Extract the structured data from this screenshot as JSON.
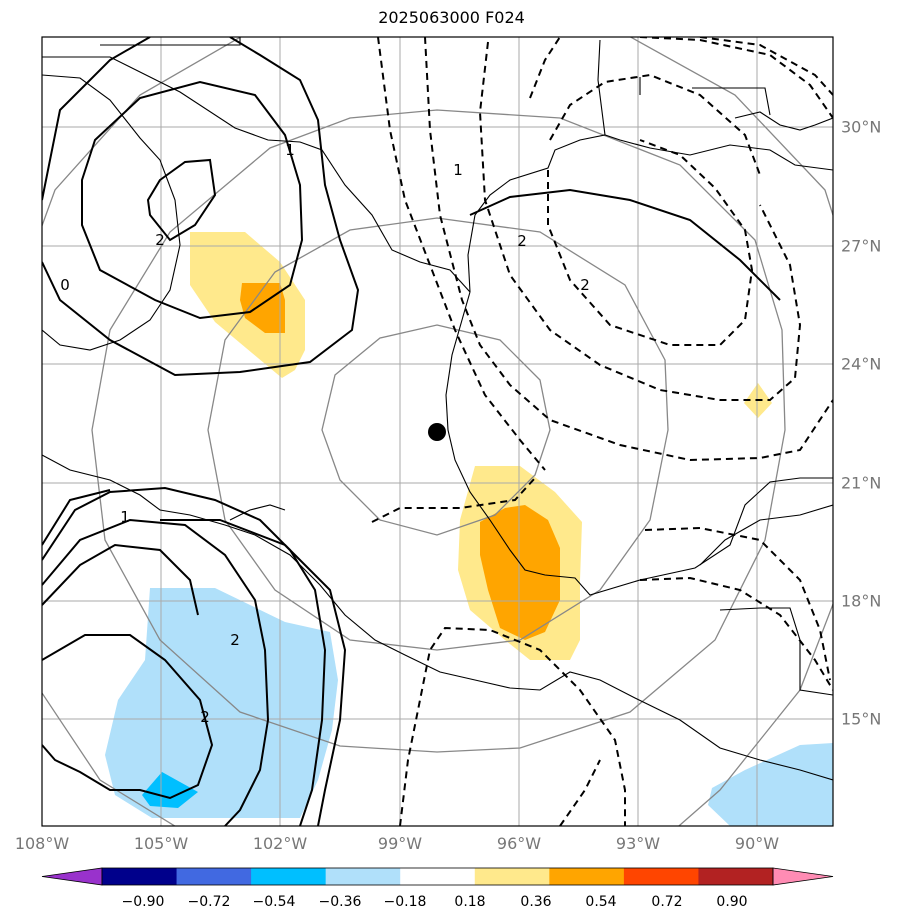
{
  "title": "2025063000 F024",
  "map": {
    "center_marker": {
      "lon": -98.0,
      "lat": 22.3
    },
    "lon_labels": [
      "108°W",
      "105°W",
      "102°W",
      "99°W",
      "96°W",
      "93°W",
      "90°W"
    ],
    "lat_labels": [
      "30°N",
      "27°N",
      "24°N",
      "21°N",
      "18°N",
      "15°N"
    ],
    "contour_labels": [
      "2",
      "1",
      "0",
      "1",
      "2",
      "2",
      "1",
      "2",
      "2"
    ]
  },
  "colorbar": {
    "ticks": [
      "−0.90",
      "−0.72",
      "−0.54",
      "−0.36",
      "−0.18",
      "0.18",
      "0.36",
      "0.54",
      "0.72",
      "0.90"
    ],
    "colors": [
      "#9932cc",
      "#00008b",
      "#4169e1",
      "#00bfff",
      "#b0e0fa",
      "#ffffff",
      "#ffe98c",
      "#ffa500",
      "#ff4500",
      "#b22222",
      "#ff8cb4"
    ]
  },
  "colors": {
    "positive_light": "#ffe98c",
    "positive_mid": "#ffa500",
    "negative_light": "#b0e0fa",
    "negative_mid": "#00bfff",
    "grid": "#aaaaaa",
    "range_rings": "#888888"
  }
}
